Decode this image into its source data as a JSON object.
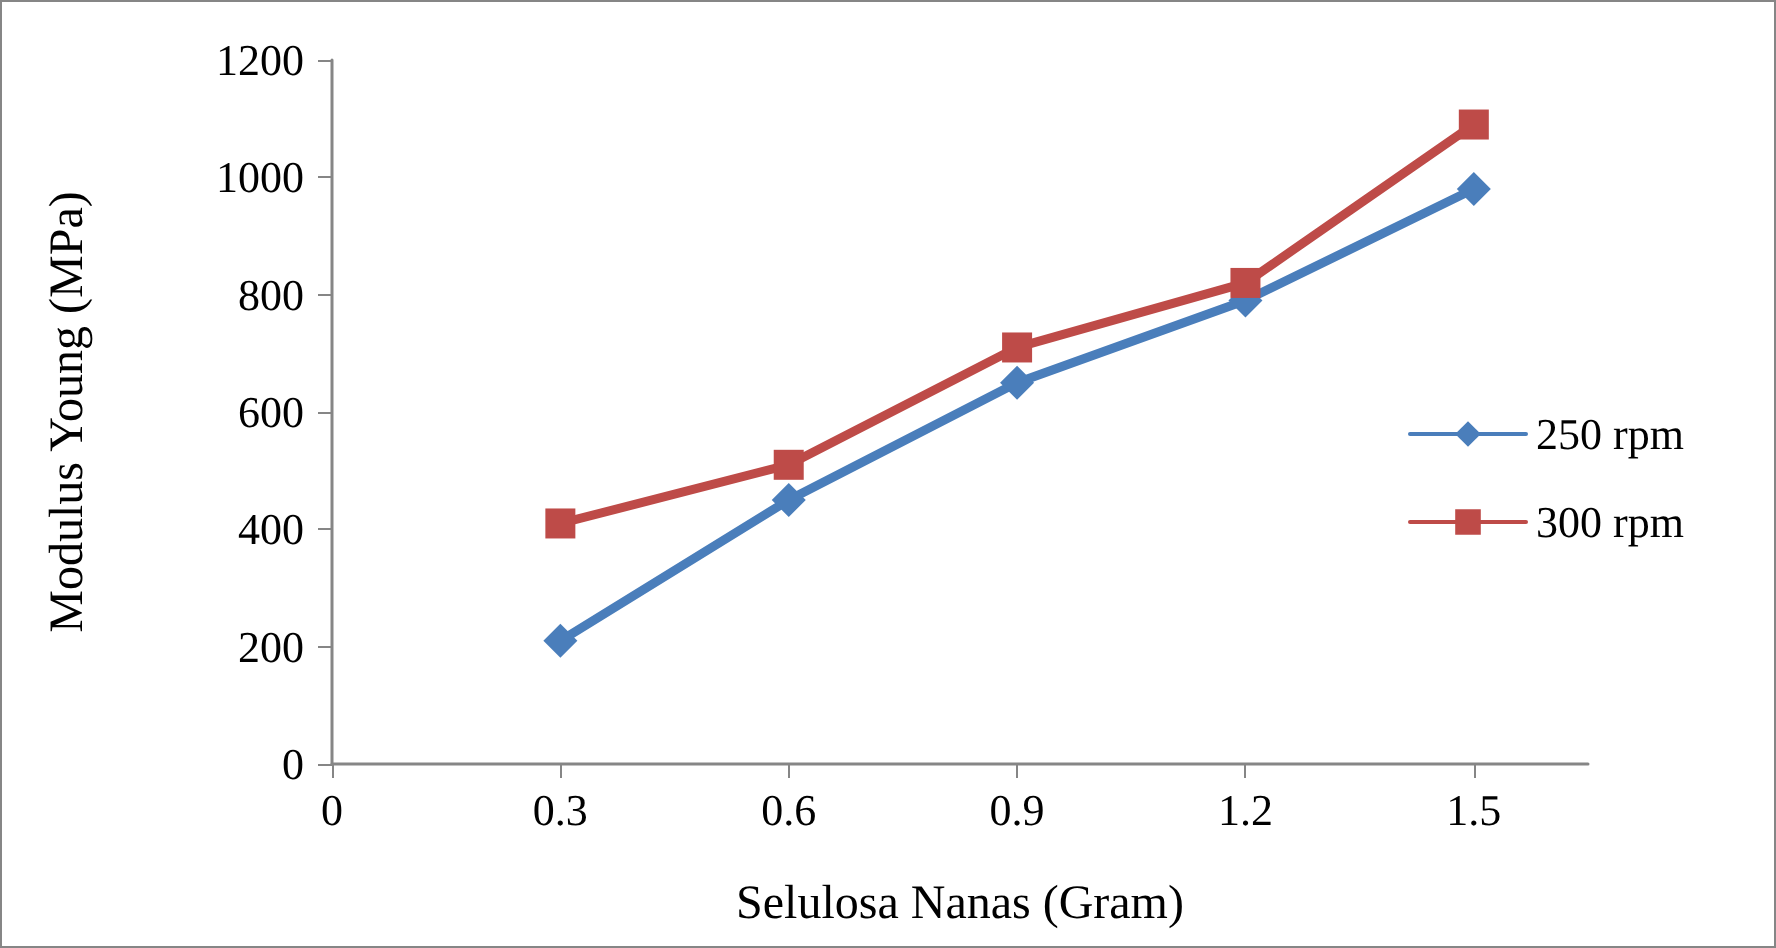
{
  "chart_data": {
    "type": "line",
    "xlabel": "Selulosa Nanas (Gram)",
    "ylabel": "Modulus Young (MPa)",
    "x": [
      0.3,
      0.6,
      0.9,
      1.2,
      1.5
    ],
    "series": [
      {
        "name": "250 rpm",
        "color": "#4a7ebb",
        "marker": "diamond",
        "values": [
          210,
          450,
          650,
          790,
          980
        ]
      },
      {
        "name": "300 rpm",
        "color": "#be4b48",
        "marker": "square",
        "values": [
          410,
          510,
          710,
          820,
          1090
        ]
      }
    ],
    "xlim": [
      0,
      1.65
    ],
    "xticks": [
      0,
      0.3,
      0.6,
      0.9,
      1.2,
      1.5
    ],
    "ylim": [
      0,
      1200
    ],
    "yticks": [
      0,
      200,
      400,
      600,
      800,
      1000,
      1200
    ],
    "grid": false,
    "legend": "right",
    "line_style": "solid"
  }
}
